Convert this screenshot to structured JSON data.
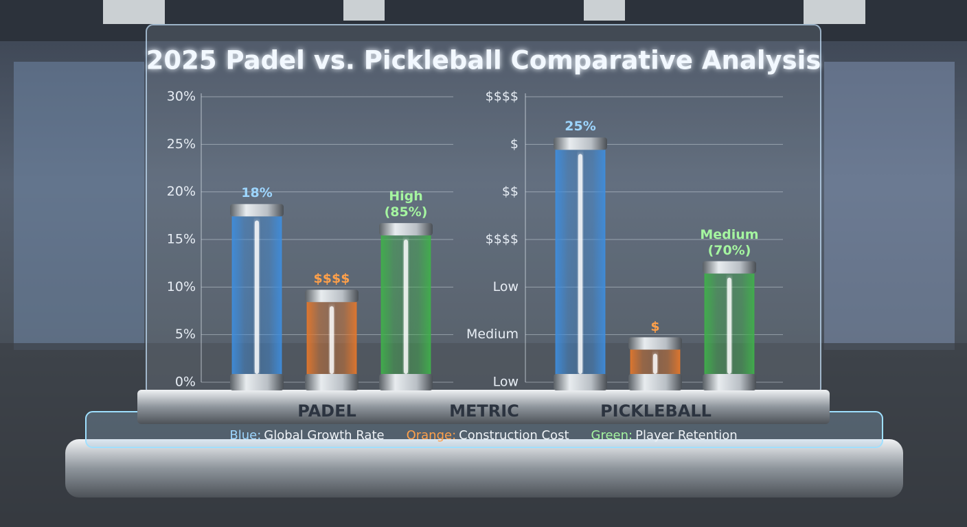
{
  "chart_data": {
    "type": "bar",
    "title": "2025 Padel vs. Pickleball Comparative Analysis",
    "categories": [
      "PADEL",
      "PICKLEBALL"
    ],
    "xlabel": "METRIC",
    "series": [
      {
        "name": "Global Growth Rate",
        "legend_prefix": "Blue:",
        "color": "#3d8ee0",
        "values": [
          18,
          25
        ],
        "annotations": [
          "18%",
          "25%"
        ]
      },
      {
        "name": "Construction Cost",
        "legend_prefix": "Orange:",
        "color": "#e8782a",
        "values": [
          9,
          4
        ],
        "annotations": [
          "$$$$",
          "$"
        ]
      },
      {
        "name": "Player Retention",
        "legend_prefix": "Green:",
        "color": "#3fb24a",
        "values": [
          16,
          12
        ],
        "annotations": [
          "High (85%)",
          "Medium (70%)"
        ]
      }
    ],
    "ylim": [
      0,
      30
    ],
    "yticks": [
      {
        "value": 0,
        "label": "0%"
      },
      {
        "value": 5,
        "label": "5%"
      },
      {
        "value": 10,
        "label": "10%"
      },
      {
        "value": 15,
        "label": "15%"
      },
      {
        "value": 20,
        "label": "20%"
      },
      {
        "value": 25,
        "label": "25%"
      },
      {
        "value": 30,
        "label": "30%"
      }
    ],
    "y2lim": [
      0,
      30
    ],
    "y2ticks": [
      {
        "value": 0,
        "label": "Low"
      },
      {
        "value": 5,
        "label": "Medium"
      },
      {
        "value": 10,
        "label": "Low"
      },
      {
        "value": 15,
        "label": "$$$$"
      },
      {
        "value": 20,
        "label": "$$"
      },
      {
        "value": 25,
        "label": "$"
      },
      {
        "value": 30,
        "label": "$$$$"
      }
    ],
    "grid": true
  }
}
